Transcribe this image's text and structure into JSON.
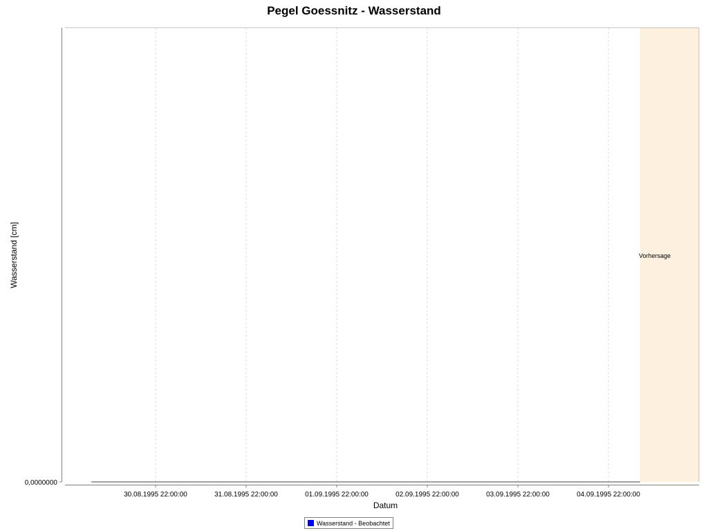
{
  "chart_data": {
    "type": "line",
    "title": "Pegel Goessnitz - Wasserstand",
    "xlabel": "Datum",
    "ylabel": "Wasserstand [cm]",
    "x_ticks": [
      "30.08.1995 22:00:00",
      "31.08.1995 22:00:00",
      "01.09.1995 22:00:00",
      "02.09.1995 22:00:00",
      "03.09.1995 22:00:00",
      "04.09.1995 22:00:00"
    ],
    "y_ticks": [
      "0,0000000"
    ],
    "xlim": [
      "29.08.1995 22:00:00",
      "05.09.1995 22:00:00"
    ],
    "ylim": [
      0,
      1
    ],
    "grid": true,
    "legend_position": "bottom",
    "series": [
      {
        "name": "Wasserstand - Beobachtet",
        "color": "#0000ff",
        "x": [
          "30.08.1995 22:00:00",
          "04.09.1995 22:00:00"
        ],
        "values": [
          0,
          0
        ]
      }
    ],
    "forecast_region": {
      "label": "Vorhersage",
      "color": "#fdf0df"
    }
  }
}
